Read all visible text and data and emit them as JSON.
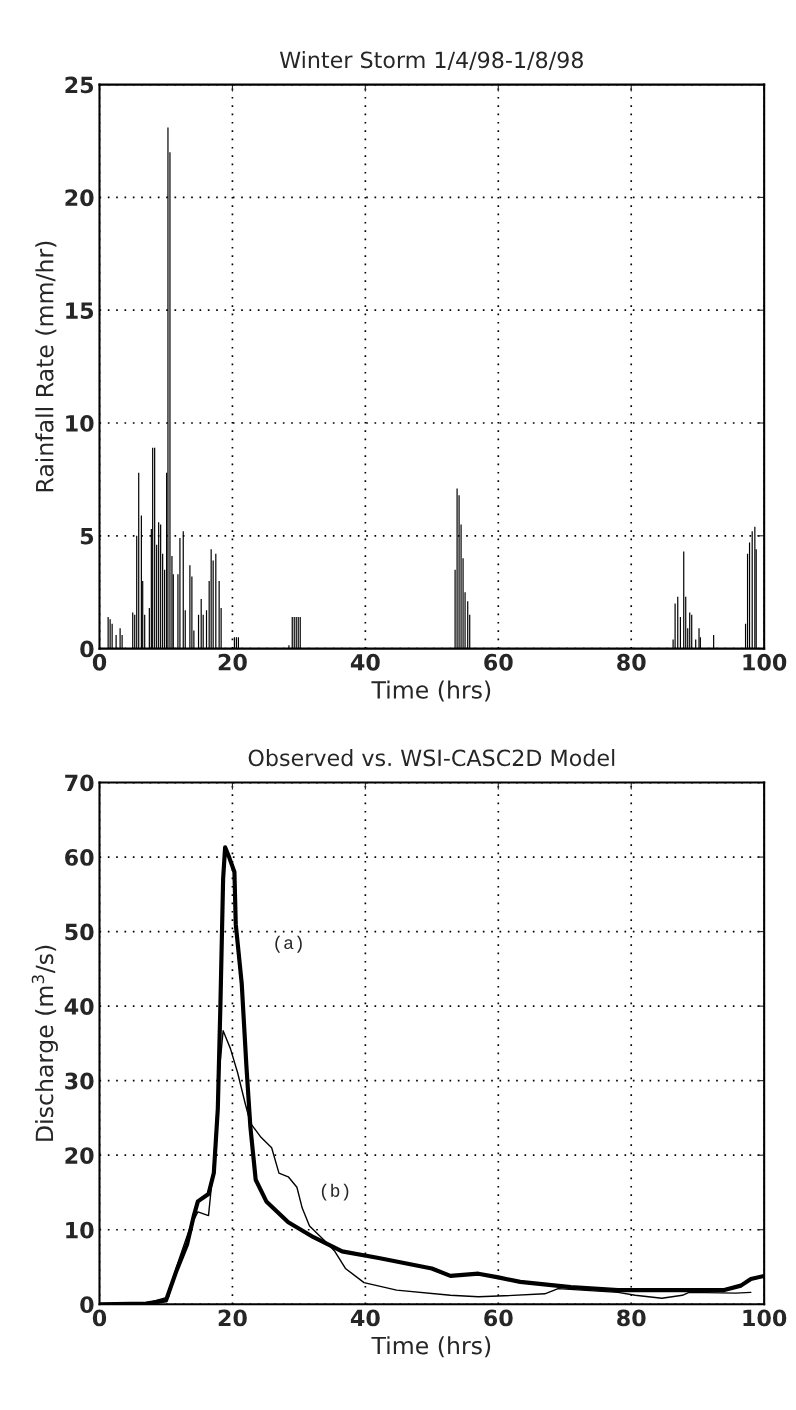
{
  "chart_data": [
    {
      "type": "bar",
      "title": "Winter Storm 1/4/98-1/8/98",
      "xlabel": "Time (hrs)",
      "ylabel": "Rainfall Rate (mm/hr)",
      "x": [
        1.3,
        1.6,
        1.9,
        2.5,
        3.1,
        3.4,
        5.0,
        5.3,
        5.6,
        5.9,
        6.3,
        6.5,
        6.8,
        7.5,
        7.8,
        8.0,
        8.3,
        8.6,
        8.9,
        9.2,
        9.5,
        9.8,
        10.1,
        10.3,
        10.6,
        10.9,
        11.1,
        11.8,
        12.1,
        12.6,
        12.9,
        13.6,
        13.9,
        14.2,
        14.9,
        15.3,
        15.6,
        16.1,
        16.5,
        16.8,
        17.1,
        17.5,
        18.0,
        18.3,
        20.3,
        20.6,
        20.9,
        28.5,
        29.0,
        29.3,
        29.6,
        29.9,
        30.2,
        53.5,
        53.8,
        54.1,
        54.4,
        54.7,
        55.0,
        55.4,
        55.7,
        86.3,
        86.6,
        87.0,
        87.4,
        87.9,
        88.2,
        88.5,
        88.8,
        89.1,
        89.7,
        90.2,
        90.4,
        92.4,
        97.2,
        97.5,
        97.8,
        98.2,
        98.6,
        98.8
      ],
      "values": [
        1.4,
        1.3,
        1.1,
        0.6,
        0.9,
        0.6,
        1.6,
        1.5,
        5.0,
        7.8,
        5.9,
        3.0,
        1.5,
        1.8,
        5.3,
        8.9,
        8.9,
        4.6,
        5.6,
        5.5,
        4.2,
        3.5,
        7.8,
        23.1,
        22.0,
        4.1,
        3.3,
        3.3,
        4.9,
        5.2,
        1.7,
        3.7,
        3.2,
        0.8,
        1.5,
        2.2,
        1.5,
        1.7,
        3.0,
        4.4,
        3.9,
        4.2,
        3.0,
        1.8,
        0.5,
        0.5,
        0.5,
        0.15,
        1.4,
        1.4,
        1.4,
        1.4,
        1.4,
        3.5,
        7.1,
        6.8,
        5.5,
        4.0,
        2.5,
        2.1,
        1.5,
        0.4,
        2.0,
        2.3,
        1.4,
        4.3,
        2.3,
        0.9,
        1.6,
        1.5,
        0.4,
        0.9,
        0.5,
        0.6,
        1.1,
        4.2,
        4.7,
        5.2,
        5.4,
        4.4
      ],
      "color": "#000000",
      "xlim": [
        0,
        100
      ],
      "xticks": [
        0,
        20,
        40,
        60,
        80,
        100
      ],
      "ylim": [
        0,
        25
      ],
      "yticks": [
        0,
        5,
        10,
        15,
        20,
        25
      ],
      "grid": true
    },
    {
      "type": "line",
      "title": "Observed vs. WSI-CASC2D Model",
      "xlabel": "Time (hrs)",
      "ylabel": "Discharge (m$^{3}$/s)",
      "series": [
        {
          "color": "#000000",
          "x": [
            0,
            7,
            10,
            11.5,
            13.2,
            14.2,
            14.8,
            16.4,
            17.2,
            17.8,
            18.2,
            18.6,
            18.9,
            19.5,
            20.3,
            20.5,
            21.4,
            22.1,
            22.7,
            23.5,
            25.1,
            28.4,
            32.2,
            36.5,
            42,
            50,
            52.8,
            57,
            60,
            63.3,
            70.9,
            78,
            86,
            94,
            96.5,
            98,
            100
          ],
          "values": [
            0,
            0.1,
            0.5,
            4.3,
            8.1,
            11.9,
            13.8,
            14.8,
            17.6,
            26.2,
            40.5,
            57.1,
            61.3,
            60,
            58,
            51,
            43,
            32,
            23.8,
            16.7,
            13.8,
            11,
            9,
            7.1,
            6.2,
            4.8,
            3.8,
            4.1,
            3.6,
            3.0,
            2.3,
            1.9,
            1.9,
            1.9,
            2.5,
            3.4,
            3.8
          ]
        },
        {
          "color": "#000000",
          "x": [
            0,
            7,
            10.4,
            11.5,
            13.7,
            14.8,
            16.4,
            17.2,
            18,
            18.6,
            19.7,
            20.8,
            21.9,
            22.7,
            24.3,
            25.9,
            27,
            28.4,
            29.7,
            30.5,
            31.6,
            33.8,
            35.4,
            37,
            39.8,
            44.7,
            52.8,
            57,
            60,
            67,
            69,
            78,
            80.6,
            84.6,
            87.7,
            88.7,
            95.7,
            98
          ],
          "values": [
            0,
            0.1,
            1,
            4.8,
            10.5,
            12.4,
            11.9,
            19,
            31,
            36.7,
            34.3,
            31,
            27,
            24.3,
            22.4,
            21,
            17.6,
            17.1,
            15.7,
            12.9,
            10.5,
            8.6,
            7.1,
            4.8,
            2.9,
            1.9,
            1.2,
            1.0,
            1.1,
            1.4,
            2.1,
            1.6,
            1.2,
            0.8,
            1.2,
            1.6,
            1.5,
            1.6
          ]
        }
      ],
      "annotations": [
        "(a)",
        "(b)"
      ],
      "xlim": [
        0,
        100
      ],
      "xticks": [
        0,
        20,
        40,
        60,
        80,
        100
      ],
      "ylim": [
        0,
        70
      ],
      "yticks": [
        0,
        10,
        20,
        30,
        40,
        50,
        60,
        70
      ],
      "grid": true
    }
  ]
}
